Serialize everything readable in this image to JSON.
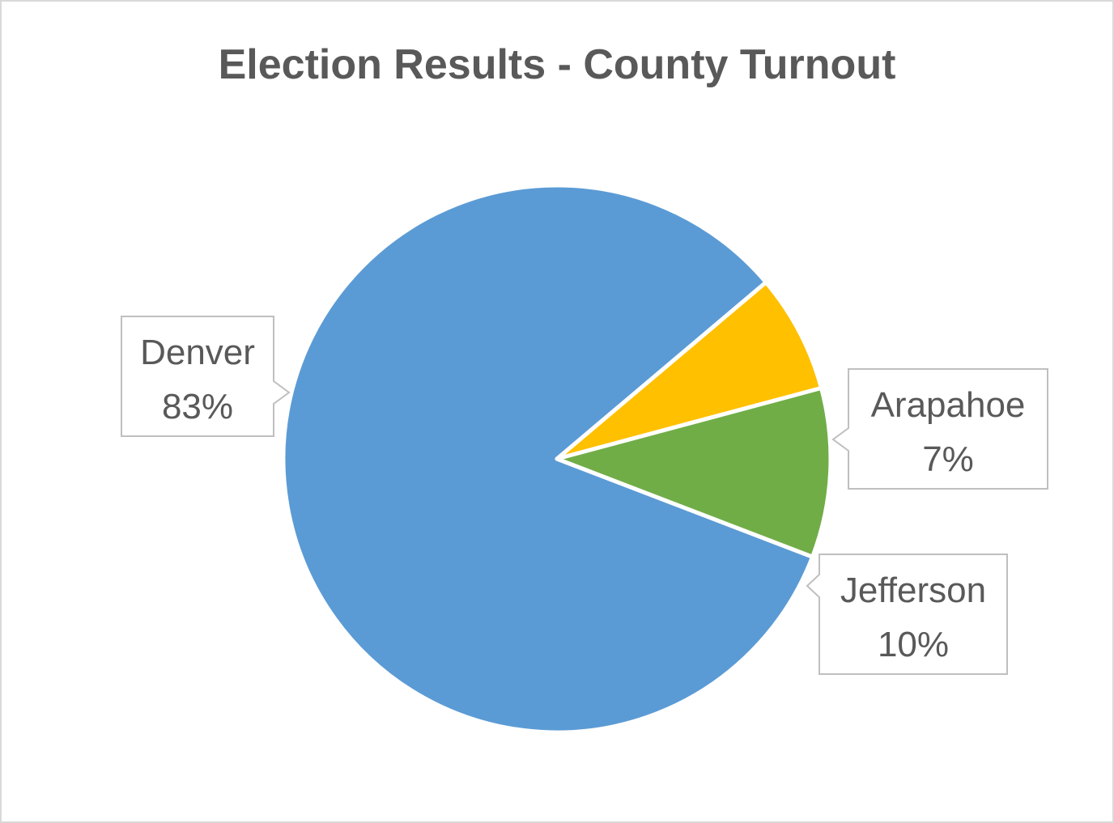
{
  "chart_data": {
    "type": "pie",
    "title": "Election Results - County Turnout",
    "series": [
      {
        "values": [
          83,
          7,
          10
        ],
        "value_labels": [
          "83%",
          "7%",
          "10%"
        ]
      }
    ],
    "categories": [
      "Denver",
      "Arapahoe",
      "Jefferson"
    ],
    "colors": [
      "#5b9bd5",
      "#ffc000",
      "#70ad47"
    ],
    "legend": "none",
    "data_labels": "callout"
  }
}
